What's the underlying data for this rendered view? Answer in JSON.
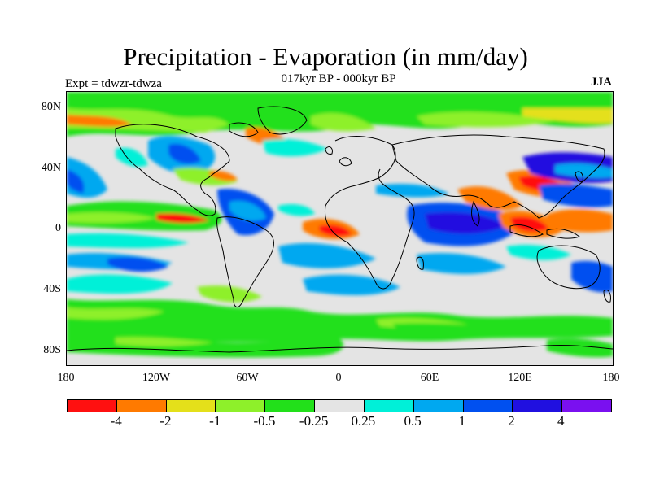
{
  "title": "Precipitation - Evaporation (in mm/day)",
  "subtitle": "017kyr BP - 000kyr BP",
  "left_label": "Expt = tdwzr-tdwza",
  "right_label": "JJA",
  "y_ticks": [
    "80N",
    "40N",
    "0",
    "40S",
    "80S"
  ],
  "x_ticks": [
    "180",
    "120W",
    "60W",
    "0",
    "60E",
    "120E",
    "180"
  ],
  "colorbar": {
    "labels": [
      "-4",
      "-2",
      "-1",
      "-0.5",
      "-0.25",
      "0.25",
      "0.5",
      "1",
      "2",
      "4"
    ],
    "colors": [
      "#ff1010",
      "#ff7a00",
      "#e4e01a",
      "#8ef02a",
      "#22e01a",
      "#e4e4e4",
      "#00f0d8",
      "#00a8f0",
      "#0050f0",
      "#2010e0",
      "#7a10f0"
    ]
  },
  "map": {
    "background_color": "#e4e4e4",
    "coastline_color": "#000000"
  }
}
